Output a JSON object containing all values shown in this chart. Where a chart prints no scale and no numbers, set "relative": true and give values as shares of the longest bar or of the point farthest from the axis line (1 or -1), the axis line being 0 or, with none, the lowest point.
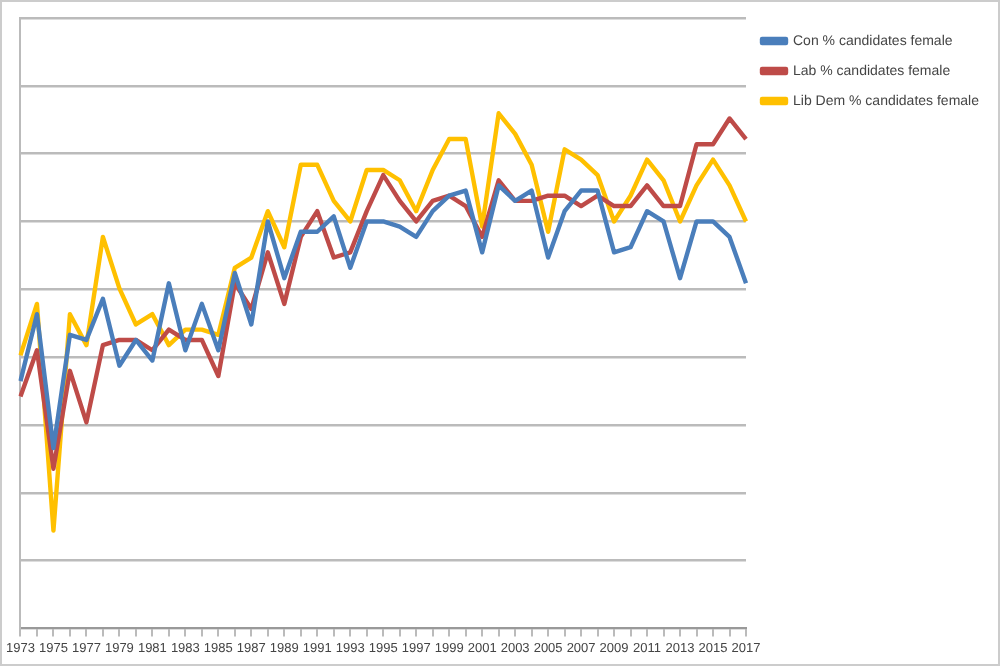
{
  "chart_data": {
    "type": "line",
    "relative": true,
    "grid": "y",
    "legend": "right",
    "marker": "none",
    "line_style": "solid",
    "categories": [
      "1973",
      null,
      "1975",
      null,
      "1977",
      null,
      "1979",
      null,
      "1981",
      null,
      "1983",
      null,
      "1985",
      null,
      "1987",
      null,
      "1989",
      null,
      "1991",
      null,
      "1993",
      null,
      "1995",
      null,
      "1997",
      null,
      "1999",
      null,
      "2001",
      null,
      "2003",
      null,
      "2005",
      null,
      "2007",
      null,
      "2009",
      null,
      "2011",
      null,
      "2013",
      null,
      "2015",
      null,
      "2017"
    ],
    "series": [
      {
        "name": "Con % candidates female",
        "color": "#4a7ebb",
        "values": [
          0.48,
          0.61,
          0.35,
          0.57,
          0.56,
          0.64,
          0.51,
          0.56,
          0.52,
          0.67,
          0.54,
          0.63,
          0.54,
          0.69,
          0.59,
          0.79,
          0.68,
          0.77,
          0.77,
          0.8,
          0.7,
          0.79,
          0.79,
          0.78,
          0.76,
          0.81,
          0.84,
          0.85,
          0.73,
          0.86,
          0.83,
          0.85,
          0.72,
          0.81,
          0.85,
          0.85,
          0.73,
          0.74,
          0.81,
          0.79,
          0.68,
          0.79,
          0.79,
          0.76,
          0.67
        ]
      },
      {
        "name": "Lab % candidates female",
        "color": "#be4b48",
        "values": [
          0.45,
          0.54,
          0.31,
          0.5,
          0.4,
          0.55,
          0.56,
          0.56,
          0.54,
          0.58,
          0.56,
          0.56,
          0.49,
          0.67,
          0.62,
          0.73,
          0.63,
          0.76,
          0.81,
          0.72,
          0.73,
          0.81,
          0.88,
          0.83,
          0.79,
          0.83,
          0.84,
          0.82,
          0.76,
          0.87,
          0.83,
          0.83,
          0.84,
          0.84,
          0.82,
          0.84,
          0.82,
          0.82,
          0.86,
          0.82,
          0.82,
          0.94,
          0.94,
          0.99,
          0.95
        ]
      },
      {
        "name": "Lib Dem % candidates female",
        "color": "#ffc000",
        "values": [
          0.53,
          0.63,
          0.19,
          0.61,
          0.55,
          0.76,
          0.66,
          0.59,
          0.61,
          0.55,
          0.58,
          0.58,
          0.57,
          0.7,
          0.72,
          0.81,
          0.74,
          0.9,
          0.9,
          0.83,
          0.79,
          0.89,
          0.89,
          0.87,
          0.81,
          0.89,
          0.95,
          0.95,
          0.78,
          1,
          0.96,
          0.9,
          0.77,
          0.93,
          0.91,
          0.88,
          0.79,
          0.84,
          0.91,
          0.87,
          0.79,
          0.86,
          0.91,
          0.86,
          0.79
        ]
      }
    ]
  }
}
